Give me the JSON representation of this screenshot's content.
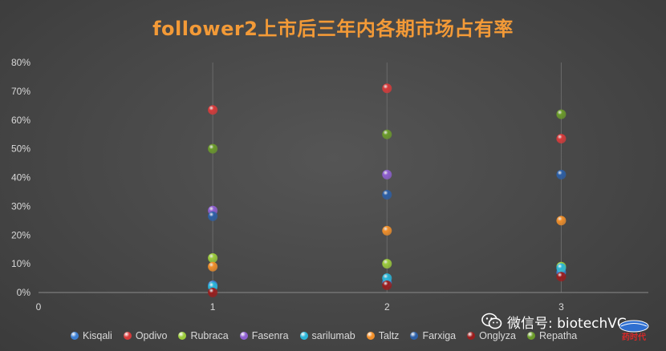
{
  "title": "follower2上市后三年内各期市场占有率",
  "watermark": {
    "text": "微信号: biotechVC",
    "icon": "wechat-icon",
    "logo_caption": "药时代"
  },
  "legend_position": "bottom",
  "chart_data": {
    "type": "scatter",
    "title": "follower2上市后三年内各期市场占有率",
    "xlabel": "",
    "ylabel": "",
    "xlim": [
      0,
      3.5
    ],
    "ylim": [
      0,
      0.8
    ],
    "x_ticks": [
      "0",
      "1",
      "2",
      "3"
    ],
    "y_ticks": [
      "0%",
      "10%",
      "20%",
      "30%",
      "40%",
      "50%",
      "60%",
      "70%",
      "80%"
    ],
    "grid": "vertical",
    "series": [
      {
        "name": "Kisqali",
        "color": "#3d7fd1",
        "points": [
          [
            1,
            0.025
          ],
          [
            2,
            0.035
          ],
          [
            3,
            0.07
          ]
        ]
      },
      {
        "name": "Opdivo",
        "color": "#d83a3a",
        "points": [
          [
            1,
            0.635
          ],
          [
            2,
            0.71
          ],
          [
            3,
            0.535
          ]
        ]
      },
      {
        "name": "Rubraca",
        "color": "#9ccc3c",
        "points": [
          [
            1,
            0.12
          ],
          [
            2,
            0.1
          ],
          [
            3,
            0.09
          ]
        ]
      },
      {
        "name": "Fasenra",
        "color": "#8e5fd0",
        "points": [
          [
            1,
            0.285
          ],
          [
            2,
            0.41
          ]
        ]
      },
      {
        "name": "sarilumab",
        "color": "#2ab5d8",
        "points": [
          [
            1,
            0.02
          ],
          [
            2,
            0.05
          ],
          [
            3,
            0.085
          ]
        ]
      },
      {
        "name": "Taltz",
        "color": "#f18f2a",
        "points": [
          [
            1,
            0.09
          ],
          [
            2,
            0.215
          ],
          [
            3,
            0.25
          ]
        ]
      },
      {
        "name": "Farxiga",
        "color": "#2c5fa6",
        "points": [
          [
            1,
            0.265
          ],
          [
            2,
            0.34
          ],
          [
            3,
            0.41
          ]
        ]
      },
      {
        "name": "Onglyza",
        "color": "#9a1d1d",
        "points": [
          [
            1,
            0.0
          ],
          [
            2,
            0.025
          ],
          [
            3,
            0.055
          ]
        ]
      },
      {
        "name": "Repatha",
        "color": "#6b9b2a",
        "points": [
          [
            1,
            0.5
          ],
          [
            2,
            0.55
          ],
          [
            3,
            0.62
          ]
        ]
      }
    ]
  }
}
